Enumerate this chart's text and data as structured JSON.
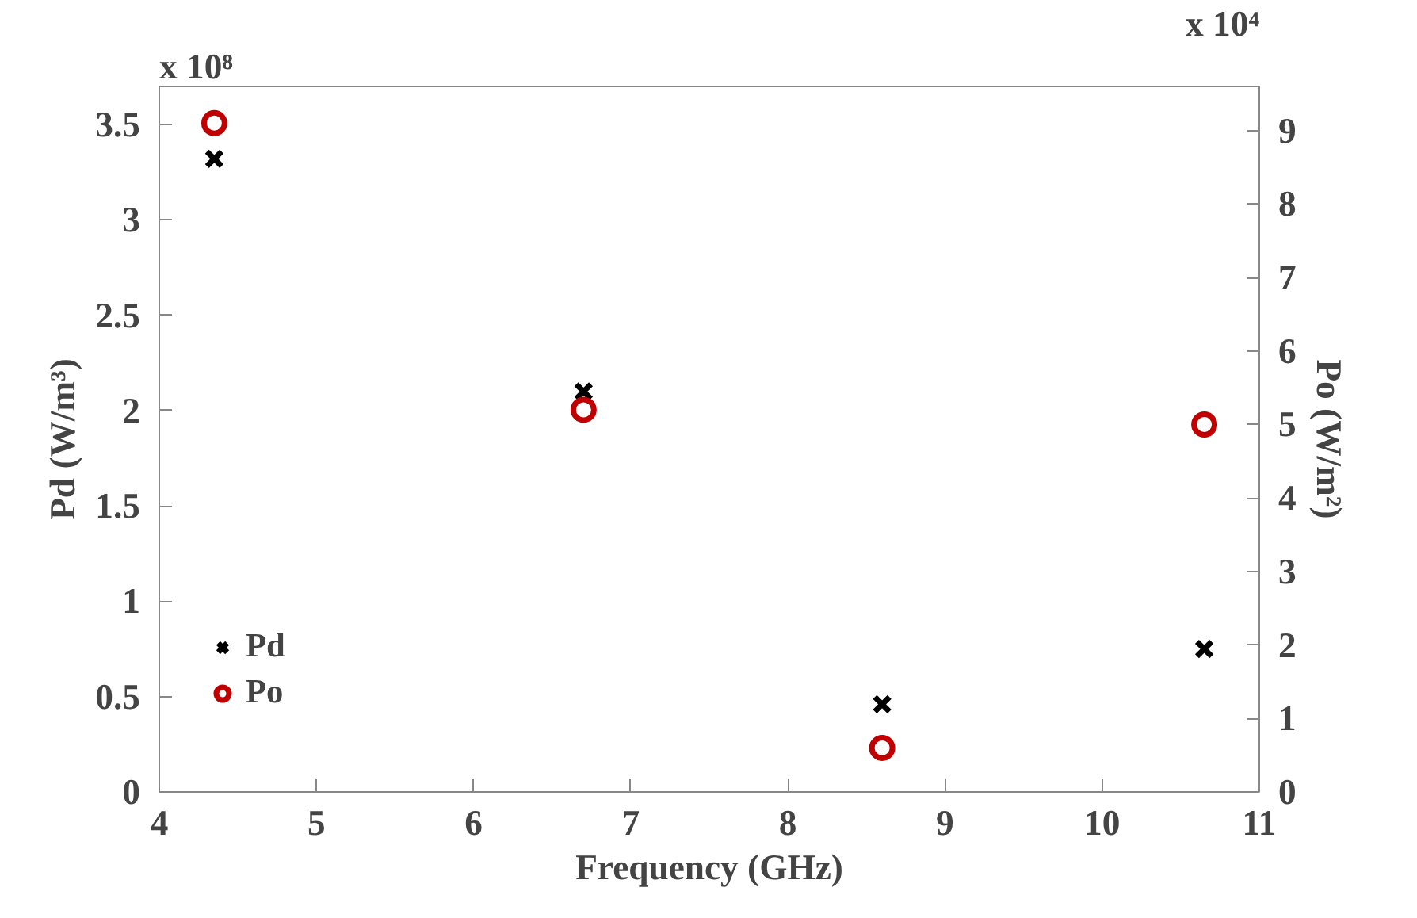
{
  "chart_data": {
    "type": "scatter",
    "xlabel": "Frequency (GHz)",
    "ylabel": "Pd (W/m³)",
    "y2label": "Po (W/m²)",
    "annotations": [
      "x 10⁸",
      "x 10⁴"
    ],
    "x": [
      4.35,
      6.7,
      8.6,
      10.65
    ],
    "series": [
      {
        "name": "Pd",
        "color": "#000000",
        "marker": "cross",
        "values": [
          3.32,
          2.1,
          0.46,
          0.75
        ]
      },
      {
        "name": "Po",
        "color": "#c00000",
        "marker": "circle",
        "axis": "y2",
        "values": [
          9.1,
          5.2,
          0.6,
          5.0
        ]
      }
    ],
    "xlim": [
      4,
      11
    ],
    "xticks": [
      4,
      5,
      6,
      7,
      8,
      9,
      10,
      11
    ],
    "ylim": [
      0,
      3.7
    ],
    "yticks": [
      0,
      0.5,
      1,
      1.5,
      2,
      2.5,
      3,
      3.5
    ],
    "y2lim": [
      0,
      9.6
    ],
    "y2ticks": [
      0,
      1,
      2,
      3,
      4,
      5,
      6,
      7,
      8,
      9
    ],
    "legend": "left"
  }
}
